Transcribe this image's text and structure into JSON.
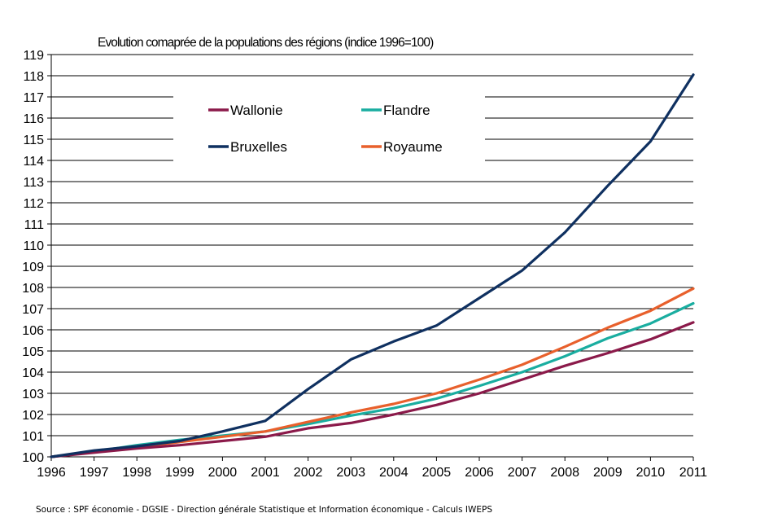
{
  "chart_data": {
    "type": "line",
    "title": "Evolution comaprée de la populations des régions (indice 1996=100)",
    "x": [
      1996,
      1997,
      1998,
      1999,
      2000,
      2001,
      2002,
      2003,
      2004,
      2005,
      2006,
      2007,
      2008,
      2009,
      2010,
      2011
    ],
    "ylim": [
      100,
      119
    ],
    "yticks": [
      100,
      101,
      102,
      103,
      104,
      105,
      106,
      107,
      108,
      109,
      110,
      111,
      112,
      113,
      114,
      115,
      116,
      117,
      118,
      119
    ],
    "grid": true,
    "legend_position": "top-left inside plot",
    "series": [
      {
        "name": "Wallonie",
        "color": "#8B1A4A",
        "values": [
          100,
          100.2,
          100.4,
          100.55,
          100.75,
          100.95,
          101.35,
          101.6,
          102.0,
          102.45,
          103.0,
          103.65,
          104.3,
          104.9,
          105.55,
          106.35
        ]
      },
      {
        "name": "Flandre",
        "color": "#1AADA0",
        "values": [
          100,
          100.25,
          100.55,
          100.8,
          101.0,
          101.2,
          101.55,
          101.95,
          102.3,
          102.75,
          103.35,
          104.0,
          104.75,
          105.6,
          106.3,
          107.25
        ]
      },
      {
        "name": "Bruxelles",
        "color": "#0F3060",
        "values": [
          100,
          100.3,
          100.5,
          100.75,
          101.2,
          101.7,
          103.2,
          104.6,
          105.45,
          106.2,
          107.5,
          108.8,
          110.6,
          112.8,
          114.9,
          118.05
        ]
      },
      {
        "name": "Royaume",
        "color": "#E8602C",
        "values": [
          100,
          100.25,
          100.45,
          100.7,
          100.95,
          101.2,
          101.65,
          102.1,
          102.5,
          103.0,
          103.65,
          104.35,
          105.2,
          106.1,
          106.9,
          107.95
        ]
      }
    ],
    "source": "Source : SPF économie - DGSIE - Direction générale Statistique et Information économique - Calculs IWEPS"
  }
}
